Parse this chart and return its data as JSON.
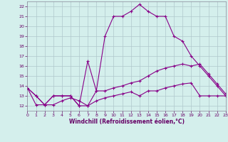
{
  "xlabel": "Windchill (Refroidissement éolien,°C)",
  "xlim": [
    0,
    23
  ],
  "ylim": [
    11.5,
    22.5
  ],
  "xticks": [
    0,
    1,
    2,
    3,
    4,
    5,
    6,
    7,
    8,
    9,
    10,
    11,
    12,
    13,
    14,
    15,
    16,
    17,
    18,
    19,
    20,
    21,
    22,
    23
  ],
  "yticks": [
    12,
    13,
    14,
    15,
    16,
    17,
    18,
    19,
    20,
    21,
    22
  ],
  "background_color": "#d4efec",
  "grid_color": "#b0c8cc",
  "line_color": "#880088",
  "line1_x": [
    0,
    1,
    2,
    3,
    4,
    5,
    6,
    7,
    8,
    9,
    10,
    11,
    12,
    13,
    14,
    15,
    16,
    17,
    18,
    19,
    20,
    21,
    22,
    23
  ],
  "line1_y": [
    13.8,
    13.0,
    12.1,
    13.0,
    13.0,
    13.0,
    12.0,
    16.5,
    13.5,
    19.0,
    21.0,
    21.0,
    21.5,
    22.2,
    21.5,
    21.0,
    21.0,
    19.0,
    18.5,
    17.0,
    16.0,
    15.0,
    14.0,
    13.0
  ],
  "line2_x": [
    0,
    1,
    2,
    3,
    4,
    5,
    6,
    7,
    8,
    9,
    10,
    11,
    12,
    13,
    14,
    15,
    16,
    17,
    18,
    19,
    20,
    21,
    22,
    23
  ],
  "line2_y": [
    13.8,
    13.0,
    12.1,
    13.0,
    13.0,
    13.0,
    12.0,
    12.0,
    13.5,
    13.5,
    13.8,
    14.0,
    14.3,
    14.5,
    15.0,
    15.5,
    15.8,
    16.0,
    16.2,
    16.0,
    16.2,
    15.2,
    14.2,
    13.2
  ],
  "line3_x": [
    0,
    1,
    2,
    3,
    4,
    5,
    6,
    7,
    8,
    9,
    10,
    11,
    12,
    13,
    14,
    15,
    16,
    17,
    18,
    19,
    20,
    21,
    22,
    23
  ],
  "line3_y": [
    13.8,
    12.1,
    12.1,
    12.1,
    12.5,
    12.8,
    12.5,
    12.0,
    12.5,
    12.8,
    13.0,
    13.2,
    13.4,
    13.0,
    13.5,
    13.5,
    13.8,
    14.0,
    14.2,
    14.3,
    13.0,
    13.0,
    13.0,
    13.0
  ]
}
